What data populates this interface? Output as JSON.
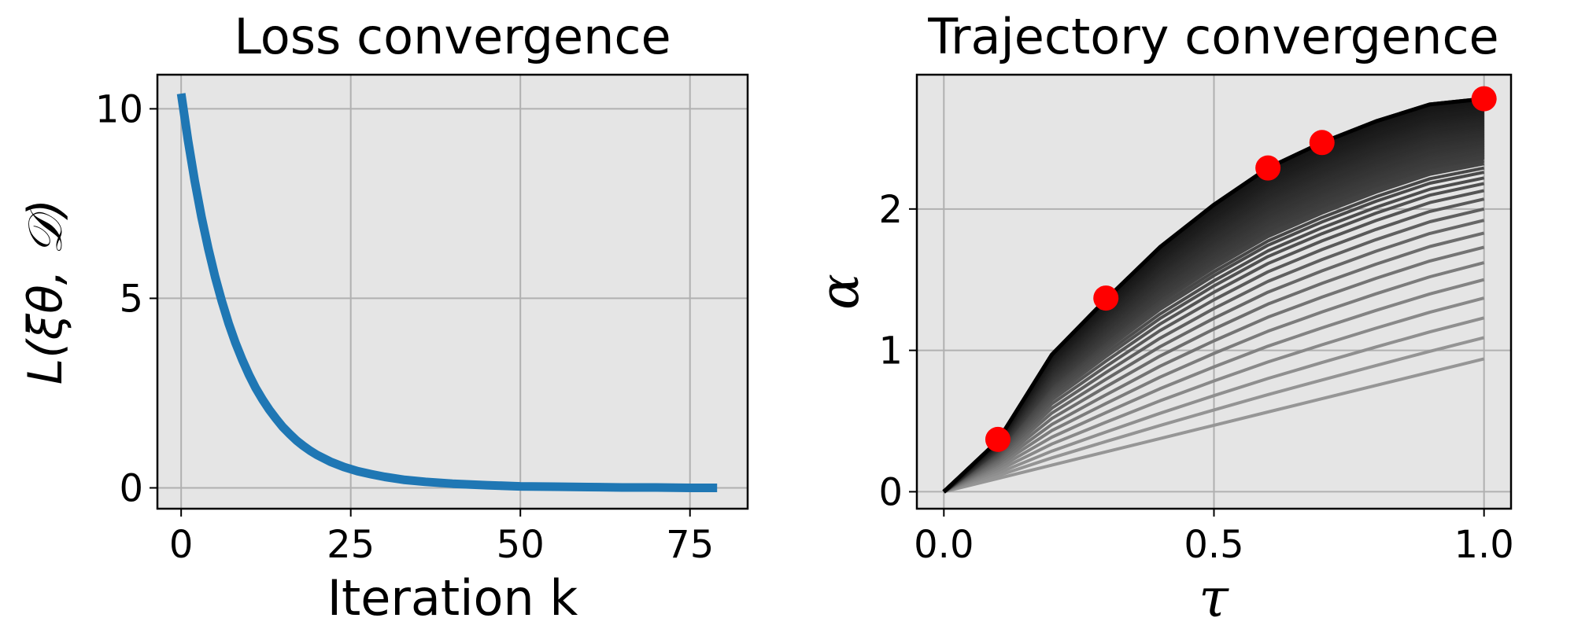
{
  "chart_data": [
    {
      "type": "line",
      "title": "Loss convergence",
      "xlabel": "Iteration k",
      "ylabel": "L(ξθ, 𝒟)",
      "xlim": [
        -3.5,
        83.5
      ],
      "ylim": [
        -0.55,
        10.9
      ],
      "xticks": [
        0,
        25,
        50,
        75
      ],
      "yticks": [
        0,
        5,
        10
      ],
      "grid": true,
      "series": [
        {
          "color": "#1f77b4",
          "x": [
            0,
            1,
            2,
            3,
            4,
            5,
            6,
            7,
            8,
            9,
            10,
            11,
            12,
            13,
            14,
            15,
            16,
            17,
            18,
            19,
            20,
            22,
            24,
            26,
            28,
            30,
            33,
            36,
            40,
            45,
            50,
            55,
            60,
            65,
            70,
            75,
            79
          ],
          "y": [
            10.4,
            9.18,
            8.1,
            7.15,
            6.31,
            5.57,
            4.92,
            4.34,
            3.83,
            3.38,
            2.98,
            2.63,
            2.33,
            2.06,
            1.82,
            1.6,
            1.42,
            1.25,
            1.11,
            0.98,
            0.87,
            0.69,
            0.55,
            0.44,
            0.36,
            0.29,
            0.21,
            0.16,
            0.11,
            0.07,
            0.04,
            0.03,
            0.02,
            0.01,
            0.01,
            0.0,
            0.0
          ]
        }
      ]
    },
    {
      "type": "line",
      "title": "Trajectory convergence",
      "xlabel": "τ",
      "ylabel": "α",
      "xlim": [
        -0.05,
        1.05
      ],
      "ylim": [
        -0.12,
        2.95
      ],
      "xticks": [
        0.0,
        0.5,
        1.0
      ],
      "yticks": [
        0,
        1,
        2
      ],
      "grid": true,
      "x": [
        0.0,
        0.1,
        0.2,
        0.3,
        0.4,
        0.5,
        0.6,
        0.7,
        0.8,
        0.9,
        1.0
      ],
      "final_trajectory": [
        0.0,
        0.36,
        0.97,
        1.36,
        1.73,
        2.03,
        2.29,
        2.47,
        2.62,
        2.74,
        2.78
      ],
      "iterate_trajectory_endpoints": [
        0.94,
        1.09,
        1.23,
        1.37,
        1.5,
        1.62,
        1.73,
        1.83,
        1.92,
        2.0,
        2.07,
        2.13,
        2.18,
        2.22,
        2.26,
        2.29,
        2.32,
        2.34,
        2.36
      ],
      "observations": {
        "color": "#ff0000",
        "x": [
          0.1,
          0.3,
          0.6,
          0.7,
          1.0
        ],
        "y": [
          0.37,
          1.37,
          2.29,
          2.47,
          2.78
        ]
      }
    }
  ]
}
